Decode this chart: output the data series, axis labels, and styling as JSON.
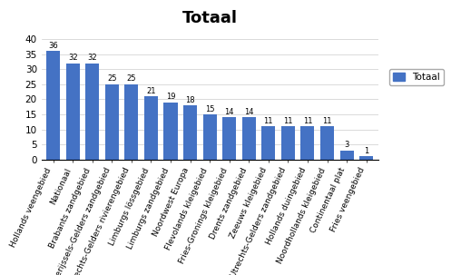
{
  "title": "Totaal",
  "labels": [
    "Hollands veengebied",
    "Nationaal",
    "Brabants zandgebied",
    "Overijssels-Gelders zandgebied",
    "Utrechts-Gelders rivierengebied",
    "Limburgs lössgebied",
    "Limburgs zandgebied",
    "Noordwest Europa",
    "Flevolands kleigebied",
    "Fries-Gronings kleigebied",
    "Drents zandgebied",
    "Zeeuws kleigebied",
    "Utrechts-Gelders zandgebied",
    "Hollands duingebied",
    "Noordhollands kleigebied",
    "Continentaal plat",
    "Fries veengebied"
  ],
  "values": [
    36,
    32,
    32,
    25,
    25,
    21,
    19,
    18,
    15,
    14,
    14,
    11,
    11,
    11,
    11,
    3,
    1
  ],
  "bar_color": "#4472C4",
  "legend_label": "Totaal",
  "ylim": [
    0,
    42
  ],
  "yticks": [
    0,
    5,
    10,
    15,
    20,
    25,
    30,
    35,
    40
  ],
  "title_fontsize": 13,
  "label_fontsize": 6.5,
  "value_fontsize": 6.0
}
